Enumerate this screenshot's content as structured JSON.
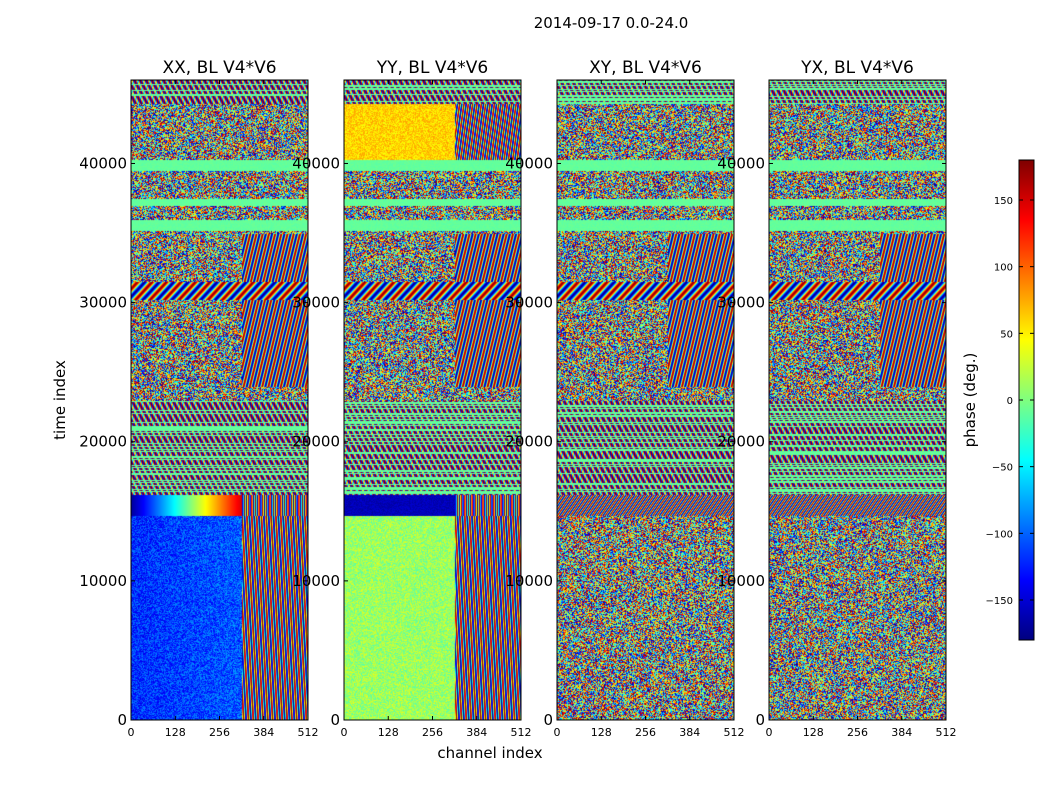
{
  "figure": {
    "suptitle": "2014-09-17 0.0-24.0",
    "ylabel": "time index",
    "xlabel": "channel index"
  },
  "colorbar": {
    "label": "phase (deg.)",
    "range": [
      -180,
      180
    ],
    "ticks": [
      -150,
      -100,
      -50,
      0,
      50,
      100,
      150
    ],
    "tick_labels": [
      "−150",
      "−100",
      "−50",
      "0",
      "50",
      "100",
      "150"
    ],
    "colormap": "jet",
    "colors": [
      "#00007f",
      "#0000ff",
      "#007fff",
      "#00ffff",
      "#7fff7f",
      "#ffff00",
      "#ff7f00",
      "#ff0000",
      "#7f0000"
    ]
  },
  "chart_data": [
    {
      "type": "heatmap",
      "title": "XX, BL V4*V6",
      "xlim": [
        0,
        512
      ],
      "ylim": [
        0,
        46000
      ],
      "x_ticks": [
        0,
        128,
        256,
        384,
        512
      ],
      "y_ticks": [
        0,
        10000,
        20000,
        30000,
        40000
      ],
      "value_range": [
        -180,
        180
      ]
    },
    {
      "type": "heatmap",
      "title": "YY, BL V4*V6",
      "xlim": [
        0,
        512
      ],
      "ylim": [
        0,
        46000
      ],
      "x_ticks": [
        0,
        128,
        256,
        384,
        512
      ],
      "y_ticks": [
        0,
        10000,
        20000,
        30000,
        40000
      ],
      "value_range": [
        -180,
        180
      ]
    },
    {
      "type": "heatmap",
      "title": "XY, BL V4*V6",
      "xlim": [
        0,
        512
      ],
      "ylim": [
        0,
        46000
      ],
      "x_ticks": [
        0,
        128,
        256,
        384,
        512
      ],
      "y_ticks": [
        0,
        10000,
        20000,
        30000,
        40000
      ],
      "value_range": [
        -180,
        180
      ]
    },
    {
      "type": "heatmap",
      "title": "YX, BL V4*V6",
      "xlim": [
        0,
        512
      ],
      "ylim": [
        0,
        46000
      ],
      "x_ticks": [
        0,
        128,
        256,
        384,
        512
      ],
      "y_ticks": [
        0,
        10000,
        20000,
        30000,
        40000
      ],
      "value_range": [
        -180,
        180
      ]
    }
  ]
}
